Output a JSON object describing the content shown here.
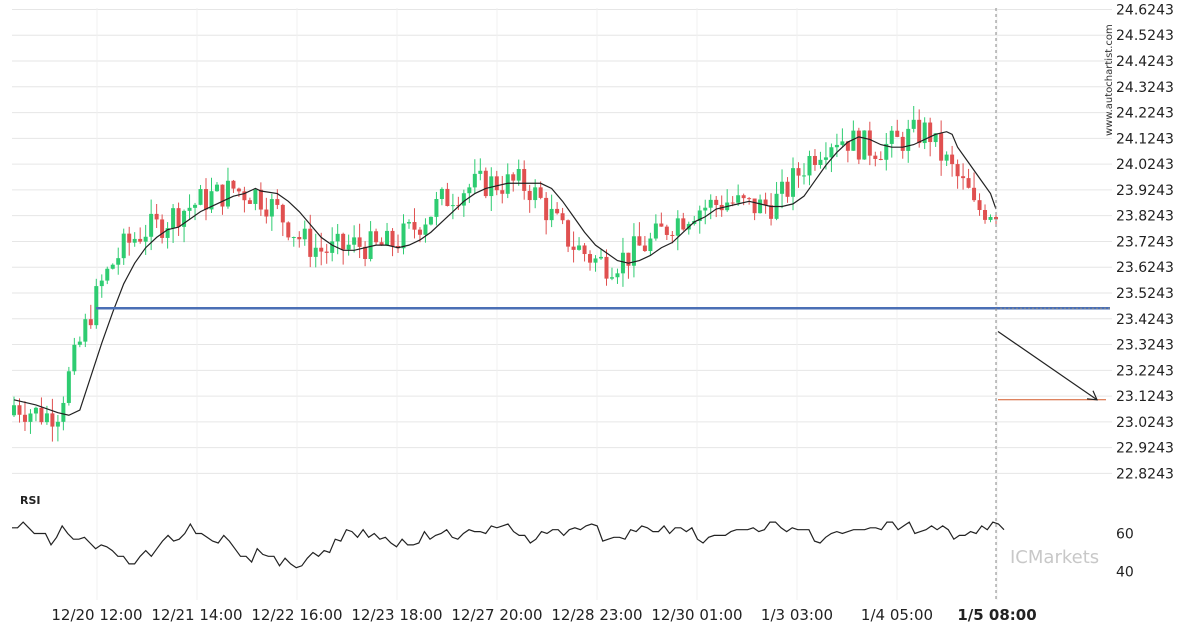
{
  "chart_data": [
    {
      "type": "candlestick",
      "y_ticks": [
        "24.6243",
        "24.5243",
        "24.4243",
        "24.3243",
        "24.2243",
        "24.1243",
        "24.0243",
        "23.9243",
        "23.8243",
        "23.7243",
        "23.6243",
        "23.5243",
        "23.4243",
        "23.3243",
        "23.2243",
        "23.1243",
        "23.0243",
        "22.9243",
        "22.8243"
      ],
      "x_ticks": [
        "12/20 12:00",
        "12/21 14:00",
        "12/22 16:00",
        "12/23 18:00",
        "12/27 20:00",
        "12/28 23:00",
        "12/30 01:00",
        "1/3 03:00",
        "1/4 05:00",
        "1/5 08:00"
      ],
      "ylim": [
        22.76,
        24.63
      ],
      "support_level": 23.465,
      "target_level": 23.11,
      "last_price": 23.465,
      "grid": true,
      "moving_average_points": [
        [
          0,
          23.11
        ],
        [
          4,
          23.09
        ],
        [
          8,
          23.06
        ],
        [
          10,
          23.05
        ],
        [
          12,
          23.07
        ],
        [
          14,
          23.2
        ],
        [
          16,
          23.33
        ],
        [
          18,
          23.45
        ],
        [
          20,
          23.56
        ],
        [
          22,
          23.64
        ],
        [
          24,
          23.7
        ],
        [
          26,
          23.74
        ],
        [
          28,
          23.77
        ],
        [
          30,
          23.78
        ],
        [
          32,
          23.81
        ],
        [
          34,
          23.84
        ],
        [
          36,
          23.86
        ],
        [
          38,
          23.88
        ],
        [
          40,
          23.9
        ],
        [
          42,
          23.91
        ],
        [
          44,
          23.93
        ],
        [
          45,
          23.92
        ],
        [
          48,
          23.91
        ],
        [
          50,
          23.88
        ],
        [
          52,
          23.84
        ],
        [
          54,
          23.79
        ],
        [
          56,
          23.74
        ],
        [
          58,
          23.71
        ],
        [
          60,
          23.69
        ],
        [
          62,
          23.69
        ],
        [
          64,
          23.7
        ],
        [
          66,
          23.71
        ],
        [
          68,
          23.71
        ],
        [
          70,
          23.7
        ],
        [
          72,
          23.71
        ],
        [
          74,
          23.73
        ],
        [
          76,
          23.76
        ],
        [
          78,
          23.8
        ],
        [
          80,
          23.84
        ],
        [
          82,
          23.88
        ],
        [
          84,
          23.91
        ],
        [
          86,
          23.93
        ],
        [
          88,
          23.94
        ],
        [
          90,
          23.95
        ],
        [
          92,
          23.95
        ],
        [
          94,
          23.95
        ],
        [
          96,
          23.95
        ],
        [
          98,
          23.93
        ],
        [
          100,
          23.88
        ],
        [
          102,
          23.82
        ],
        [
          104,
          23.76
        ],
        [
          106,
          23.71
        ],
        [
          108,
          23.68
        ],
        [
          110,
          23.65
        ],
        [
          112,
          23.64
        ],
        [
          114,
          23.65
        ],
        [
          116,
          23.67
        ],
        [
          118,
          23.7
        ],
        [
          120,
          23.72
        ],
        [
          122,
          23.76
        ],
        [
          124,
          23.8
        ],
        [
          126,
          23.82
        ],
        [
          128,
          23.85
        ],
        [
          130,
          23.86
        ],
        [
          132,
          23.87
        ],
        [
          134,
          23.88
        ],
        [
          136,
          23.87
        ],
        [
          138,
          23.86
        ],
        [
          140,
          23.86
        ],
        [
          142,
          23.87
        ],
        [
          144,
          23.9
        ],
        [
          146,
          23.96
        ],
        [
          148,
          24.02
        ],
        [
          150,
          24.07
        ],
        [
          152,
          24.11
        ],
        [
          154,
          24.13
        ],
        [
          156,
          24.12
        ],
        [
          158,
          24.1
        ],
        [
          160,
          24.09
        ],
        [
          162,
          24.09
        ],
        [
          164,
          24.1
        ],
        [
          166,
          24.12
        ],
        [
          168,
          24.14
        ],
        [
          170,
          24.15
        ],
        [
          171,
          24.14
        ],
        [
          172,
          24.09
        ],
        [
          174,
          24.03
        ],
        [
          176,
          23.97
        ],
        [
          178,
          23.91
        ],
        [
          179,
          23.85
        ]
      ],
      "candle_count": 180,
      "projection": {
        "from": 23.375,
        "to": 23.11
      }
    },
    {
      "type": "line",
      "title": "RSI",
      "y_ticks": [
        "60",
        "40"
      ],
      "ylim": [
        25,
        75
      ],
      "values": [
        63,
        63,
        66,
        63,
        60,
        60,
        60,
        54,
        58,
        64,
        60,
        57,
        57,
        58,
        55,
        52,
        54,
        53,
        51,
        48,
        48,
        44,
        44,
        48,
        51,
        48,
        52,
        56,
        59,
        56,
        57,
        60,
        65,
        60,
        60,
        58,
        56,
        55,
        59,
        56,
        52,
        48,
        48,
        45,
        52,
        49,
        48,
        48,
        43,
        47,
        44,
        42,
        43,
        47,
        50,
        48,
        51,
        50,
        57,
        56,
        62,
        61,
        58,
        62,
        58,
        60,
        57,
        58,
        55,
        53,
        57,
        54,
        54,
        55,
        61,
        57,
        59,
        60,
        62,
        58,
        57,
        60,
        62,
        61,
        61,
        60,
        64,
        63,
        64,
        65,
        61,
        59,
        59,
        55,
        57,
        61,
        60,
        62,
        62,
        59,
        62,
        63,
        62,
        64,
        65,
        64,
        56,
        57,
        58,
        58,
        57,
        62,
        61,
        64,
        63,
        61,
        61,
        64,
        60,
        63,
        63,
        61,
        63,
        57,
        55,
        58,
        59,
        59,
        59,
        61,
        62,
        62,
        62,
        63,
        61,
        62,
        66,
        66,
        63,
        61,
        63,
        62,
        62,
        62,
        56,
        55,
        58,
        60,
        61,
        60,
        61,
        62,
        62,
        62,
        63,
        63,
        62,
        66,
        66,
        62,
        64,
        66,
        60,
        61,
        62,
        64,
        62,
        64,
        62,
        57,
        59,
        59,
        61,
        60,
        64,
        62,
        66,
        65,
        62
      ]
    }
  ],
  "watermark": "www.autochartist.com",
  "brand": "ICMarkets",
  "colors": {
    "up": "#2ecc71",
    "down": "#e05050",
    "support": "#4a6fb5",
    "target": "#d45a2a",
    "ma": "#222222"
  }
}
